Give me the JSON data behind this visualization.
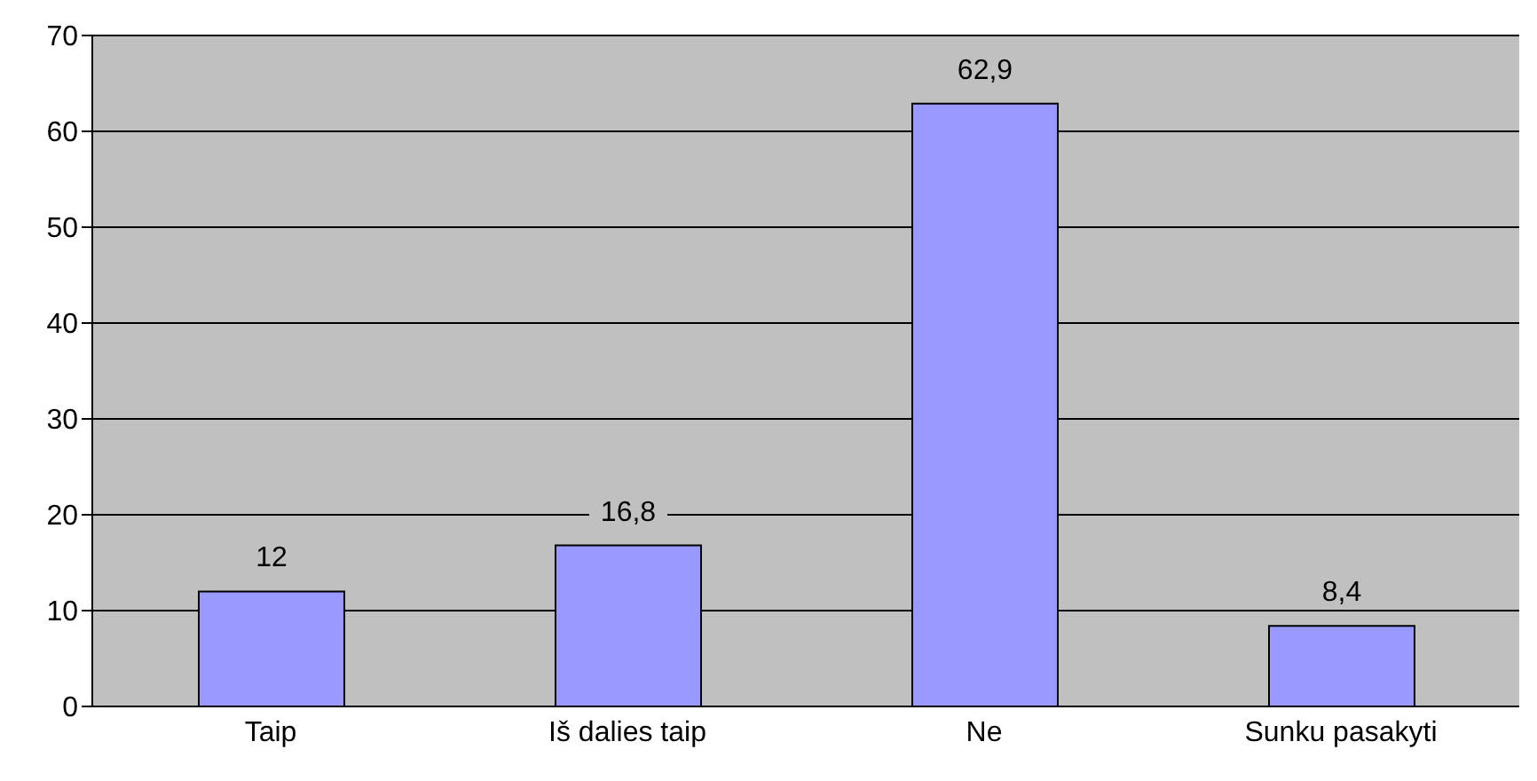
{
  "chart_data": {
    "type": "bar",
    "categories": [
      "Taip",
      "Iš dalies taip",
      "Ne",
      "Sunku pasakyti"
    ],
    "values": [
      12,
      16.8,
      62.9,
      8.4
    ],
    "color": "#9999ff",
    "value_labels": [
      "12",
      "16,8",
      "62,9",
      "8,4"
    ],
    "ylim": [
      0,
      70
    ],
    "yticks": [
      0,
      10,
      20,
      30,
      40,
      50,
      60,
      70
    ],
    "grid": "y"
  }
}
